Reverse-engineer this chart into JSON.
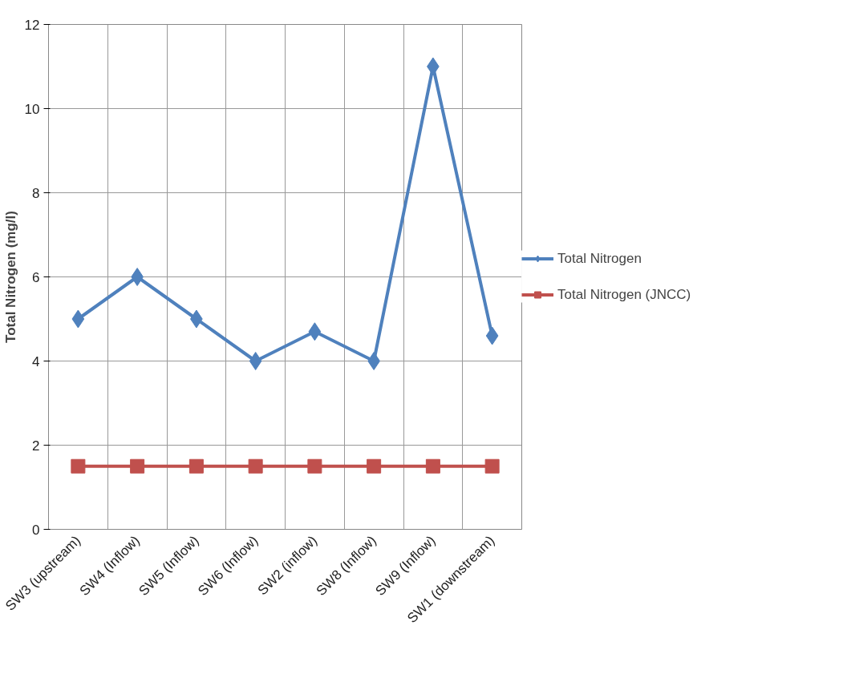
{
  "chart_data": {
    "type": "line",
    "ylabel": "Total Nitrogen (mg/l)",
    "categories": [
      "SW3 (upstream)",
      "SW4 (Inflow)",
      "SW5 (Inflow)",
      "SW6 (Inflow)",
      "SW2 (inflow)",
      "SW8 (Inflow)",
      "SW9 (Inflow)",
      "SW1 (downstream)"
    ],
    "series": [
      {
        "name": "Total Nitrogen",
        "color": "#4f81bd",
        "marker": "diamond",
        "values": [
          5,
          6,
          5,
          4,
          4.7,
          4,
          11,
          4.6
        ]
      },
      {
        "name": "Total Nitrogen (JNCC)",
        "color": "#c0504d",
        "marker": "square",
        "values": [
          1.5,
          1.5,
          1.5,
          1.5,
          1.5,
          1.5,
          1.5,
          1.5
        ]
      }
    ],
    "ylim": [
      0,
      12
    ],
    "yticks": [
      0,
      2,
      4,
      6,
      8,
      10,
      12
    ],
    "grid": true,
    "legend": "right",
    "line_style": "solid"
  }
}
